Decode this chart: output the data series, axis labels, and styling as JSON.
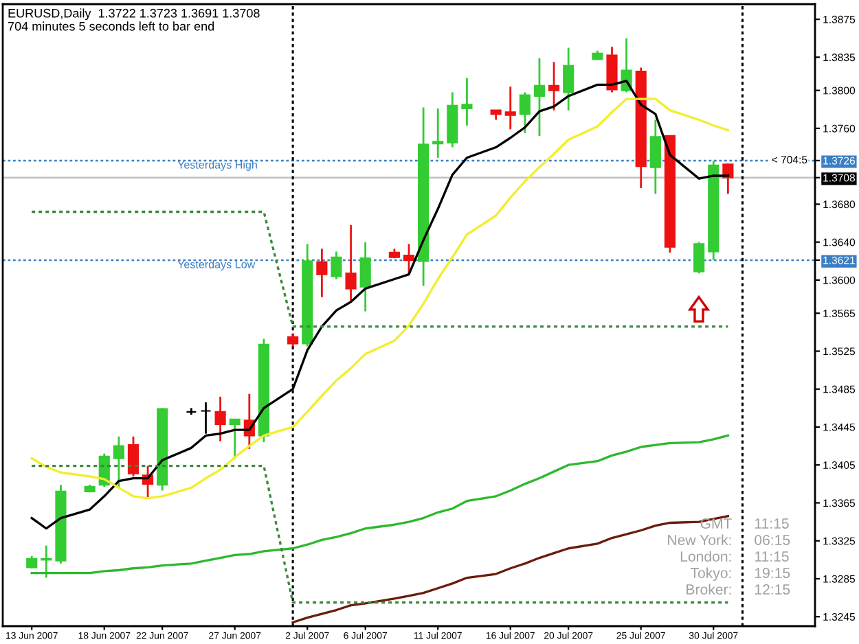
{
  "chart_data": {
    "type": "candlestick",
    "title": "EURUSD,Daily  1.3722 1.3723 1.3691 1.3708",
    "subtitle": "704 minutes 5 seconds left to bar end",
    "x": [
      "2007-06-13",
      "2007-06-14",
      "2007-06-15",
      "2007-06-17",
      "2007-06-18",
      "2007-06-19",
      "2007-06-20",
      "2007-06-21",
      "2007-06-22",
      "2007-06-24",
      "2007-06-25",
      "2007-06-26",
      "2007-06-27",
      "2007-06-28",
      "2007-06-29",
      "2007-07-01",
      "2007-07-02",
      "2007-07-03",
      "2007-07-04",
      "2007-07-05",
      "2007-07-06",
      "2007-07-08",
      "2007-07-09",
      "2007-07-10",
      "2007-07-11",
      "2007-07-12",
      "2007-07-13",
      "2007-07-15",
      "2007-07-16",
      "2007-07-17",
      "2007-07-18",
      "2007-07-19",
      "2007-07-20",
      "2007-07-22",
      "2007-07-23",
      "2007-07-24",
      "2007-07-25",
      "2007-07-26",
      "2007-07-27",
      "2007-07-29",
      "2007-07-30",
      "2007-07-31"
    ],
    "ohlc": [
      [
        1.3297,
        1.3309,
        1.3296,
        1.3306
      ],
      [
        1.3305,
        1.332,
        1.3286,
        1.3306
      ],
      [
        1.3304,
        1.3384,
        1.3301,
        1.3377
      ],
      [
        1.3377,
        1.3384,
        1.3376,
        1.3382
      ],
      [
        1.3384,
        1.3417,
        1.3382,
        1.3414
      ],
      [
        1.3412,
        1.3435,
        1.3381,
        1.3425
      ],
      [
        1.3426,
        1.3435,
        1.3393,
        1.3396
      ],
      [
        1.3394,
        1.3404,
        1.3369,
        1.3385
      ],
      [
        1.3384,
        1.3465,
        1.3378,
        1.3464
      ],
      [
        1.3461,
        1.3465,
        1.3458,
        1.3461
      ],
      [
        1.3462,
        1.3471,
        1.3438,
        1.3462
      ],
      [
        1.3461,
        1.3477,
        1.343,
        1.3448
      ],
      [
        1.3448,
        1.3453,
        1.3413,
        1.3453
      ],
      [
        1.3452,
        1.348,
        1.3422,
        1.3436
      ],
      [
        1.3436,
        1.3538,
        1.3429,
        1.3532
      ],
      [
        1.354,
        1.3543,
        1.353,
        1.3533
      ],
      [
        1.3533,
        1.3638,
        1.353,
        1.362
      ],
      [
        1.3619,
        1.3633,
        1.3582,
        1.3606
      ],
      [
        1.3604,
        1.363,
        1.3601,
        1.3624
      ],
      [
        1.3607,
        1.3658,
        1.3577,
        1.3591
      ],
      [
        1.3593,
        1.364,
        1.3567,
        1.3623
      ],
      [
        1.3629,
        1.3633,
        1.3623,
        1.3624
      ],
      [
        1.3626,
        1.3638,
        1.3606,
        1.3621
      ],
      [
        1.362,
        1.3782,
        1.3594,
        1.3743
      ],
      [
        1.3744,
        1.3781,
        1.3729,
        1.3746
      ],
      [
        1.3745,
        1.3798,
        1.374,
        1.3784
      ],
      [
        1.3781,
        1.3813,
        1.3763,
        1.3785
      ],
      [
        1.3779,
        1.3779,
        1.3769,
        1.3775
      ],
      [
        1.3777,
        1.3804,
        1.3759,
        1.3774
      ],
      [
        1.3775,
        1.3798,
        1.3755,
        1.3795
      ],
      [
        1.3794,
        1.3834,
        1.3752,
        1.3805
      ],
      [
        1.3805,
        1.383,
        1.3779,
        1.38
      ],
      [
        1.3798,
        1.3845,
        1.3779,
        1.3826
      ],
      [
        1.3833,
        1.3842,
        1.3832,
        1.3839
      ],
      [
        1.3837,
        1.3846,
        1.3798,
        1.3801
      ],
      [
        1.38,
        1.3855,
        1.3798,
        1.3821
      ],
      [
        1.382,
        1.3824,
        1.3697,
        1.372
      ],
      [
        1.3719,
        1.3769,
        1.3691,
        1.3751
      ],
      [
        1.3752,
        1.3752,
        1.3629,
        1.3635
      ],
      [
        1.3609,
        1.364,
        1.3607,
        1.3638
      ],
      [
        1.363,
        1.3726,
        1.3621,
        1.3721
      ],
      [
        1.3722,
        1.3723,
        1.3691,
        1.3708
      ]
    ],
    "colors": [
      "#33cc33",
      "#33cc33",
      "#33cc33",
      "#33cc33",
      "#33cc33",
      "#33cc33",
      "#ee1111",
      "#ee1111",
      "#33cc33",
      "#000000",
      "#000000",
      "#ee1111",
      "#33cc33",
      "#ee1111",
      "#33cc33",
      "#ee1111",
      "#33cc33",
      "#ee1111",
      "#33cc33",
      "#ee1111",
      "#33cc33",
      "#ee1111",
      "#ee1111",
      "#33cc33",
      "#33cc33",
      "#33cc33",
      "#33cc33",
      "#ee1111",
      "#ee1111",
      "#33cc33",
      "#33cc33",
      "#ee1111",
      "#33cc33",
      "#33cc33",
      "#ee1111",
      "#33cc33",
      "#ee1111",
      "#33cc33",
      "#ee1111",
      "#33cc33",
      "#33cc33",
      "#ee1111"
    ],
    "series": [
      {
        "type": "line",
        "color": "#000000",
        "values": [
          1.3349,
          1.3338,
          1.3349,
          1.3358,
          1.3372,
          1.3388,
          1.3391,
          1.3391,
          1.341,
          1.3423,
          1.3436,
          1.3438,
          1.3442,
          1.3442,
          1.3465,
          1.3485,
          1.3526,
          1.3551,
          1.3568,
          1.3577,
          1.3591,
          1.3601,
          1.3606,
          1.3642,
          1.3675,
          1.3711,
          1.3729,
          1.374,
          1.375,
          1.3761,
          1.3778,
          1.3783,
          1.3794,
          1.3806,
          1.3806,
          1.381,
          1.3785,
          1.3775,
          1.3732,
          1.3707,
          1.371,
          1.371
        ]
      },
      {
        "type": "line",
        "color": "#f2ee2e",
        "values": [
          1.3412,
          1.3403,
          1.3397,
          1.3393,
          1.339,
          1.3381,
          1.3372,
          1.337,
          1.3372,
          1.3381,
          1.3391,
          1.34,
          1.3413,
          1.3425,
          1.3436,
          1.3445,
          1.3461,
          1.3478,
          1.3494,
          1.3507,
          1.3522,
          1.3536,
          1.3552,
          1.3575,
          1.3601,
          1.3624,
          1.3648,
          1.3668,
          1.3687,
          1.3704,
          1.3719,
          1.3733,
          1.3748,
          1.3762,
          1.3777,
          1.3791,
          1.3791,
          1.3791,
          1.3779,
          1.3769,
          1.3763,
          1.3758
        ]
      },
      {
        "type": "line",
        "color": "#2fb82f",
        "values": [
          1.3291,
          1.3291,
          1.3291,
          1.3291,
          1.3293,
          1.3294,
          1.3296,
          1.3297,
          1.3299,
          1.3301,
          1.3304,
          1.3307,
          1.331,
          1.3311,
          1.3314,
          1.3317,
          1.3321,
          1.3326,
          1.3329,
          1.3333,
          1.3338,
          1.3342,
          1.3345,
          1.3349,
          1.3355,
          1.3359,
          1.3367,
          1.3372,
          1.3378,
          1.3385,
          1.3391,
          1.3398,
          1.3405,
          1.3409,
          1.3415,
          1.3419,
          1.3424,
          1.3426,
          1.3428,
          1.3429,
          1.3432,
          1.3436
        ]
      },
      {
        "type": "line",
        "color": "#6b1c0c",
        "values": [
          null,
          null,
          null,
          null,
          null,
          null,
          null,
          null,
          null,
          null,
          null,
          null,
          null,
          null,
          null,
          1.3239,
          1.3244,
          1.3248,
          1.3252,
          1.3257,
          1.3259,
          1.3264,
          1.3267,
          1.327,
          1.3275,
          1.328,
          1.3286,
          1.329,
          1.3296,
          1.3301,
          1.3307,
          1.3312,
          1.3317,
          1.3322,
          1.3328,
          1.3332,
          1.3336,
          1.3341,
          1.3344,
          1.3345,
          1.3348,
          1.3351
        ]
      },
      {
        "type": "line",
        "color": "#3a8a3a",
        "line_style": "dotted",
        "values": [
          1.3672,
          1.3672,
          1.3672,
          1.3672,
          1.3672,
          1.3672,
          1.3672,
          1.3672,
          1.3672,
          1.3672,
          1.3672,
          1.3672,
          1.3672,
          1.3672,
          1.3672,
          1.3551,
          1.3551,
          1.3551,
          1.3551,
          1.3551,
          1.3551,
          1.3551,
          1.3551,
          1.3551,
          1.3551,
          1.3551,
          1.3551,
          1.3551,
          1.3551,
          1.3551,
          1.3551,
          1.3551,
          1.3551,
          1.3551,
          1.3551,
          1.3551,
          1.3551,
          1.3551,
          1.3551,
          1.3551,
          1.3551,
          1.3551
        ]
      },
      {
        "type": "line",
        "color": "#3a8a3a",
        "line_style": "dotted",
        "values": [
          1.3404,
          1.3404,
          1.3404,
          1.3404,
          1.3404,
          1.3404,
          1.3404,
          1.3404,
          1.3404,
          1.3404,
          1.3404,
          1.3404,
          1.3404,
          1.3404,
          1.3404,
          1.326,
          1.326,
          1.326,
          1.326,
          1.326,
          1.326,
          1.326,
          1.326,
          1.326,
          1.326,
          1.326,
          1.326,
          1.326,
          1.326,
          1.326,
          1.326,
          1.326,
          1.326,
          1.326,
          1.326,
          1.326,
          1.326,
          1.326,
          1.326,
          1.326,
          1.326,
          1.326
        ]
      }
    ],
    "ref_lines": [
      {
        "axis": "y",
        "value": 1.3726,
        "label": "Yesterdays High",
        "color": "#3a7fc4",
        "line_style": "dotted"
      },
      {
        "axis": "y",
        "value": 1.3621,
        "label": "Yesterdays Low",
        "color": "#3a7fc4",
        "line_style": "dotted"
      },
      {
        "axis": "y",
        "value": 1.3708,
        "color": "#c0c0c0",
        "line_style": "solid"
      },
      {
        "axis": "x",
        "value": "2007-07-01",
        "color": "#000000",
        "line_style": "dotted"
      },
      {
        "axis": "x",
        "value": "2007-08-01",
        "color": "#000000",
        "line_style": "dotted"
      }
    ],
    "annotations": [
      {
        "text": "< 704:5",
        "x": "2007-08-03",
        "y": 1.3726
      },
      "GMT",
      "11:15",
      "New York:",
      "06:15",
      "London:",
      "11:15",
      "Tokyo:",
      "19:15",
      "Broker:",
      "12:15"
    ],
    "xlim": [
      "2007-06-11",
      "2007-08-06"
    ],
    "xticks": [
      {
        "value": "2007-06-13",
        "label": "13 Jun 2007"
      },
      {
        "value": "2007-06-18",
        "label": "18 Jun 2007"
      },
      {
        "value": "2007-06-22",
        "label": "22 Jun 2007"
      },
      {
        "value": "2007-06-27",
        "label": "27 Jun 2007"
      },
      {
        "value": "2007-07-02",
        "label": "2 Jul 2007"
      },
      {
        "value": "2007-07-06",
        "label": "6 Jul 2007"
      },
      {
        "value": "2007-07-11",
        "label": "11 Jul 2007"
      },
      {
        "value": "2007-07-16",
        "label": "16 Jul 2007"
      },
      {
        "value": "2007-07-20",
        "label": "20 Jul 2007"
      },
      {
        "value": "2007-07-25",
        "label": "25 Jul 2007"
      },
      {
        "value": "2007-07-30",
        "label": "30 Jul 2007"
      }
    ],
    "ylim": [
      1.3235,
      1.3891
    ],
    "yticks": [
      1.3875,
      1.3835,
      {
        "value": 1.38,
        "label": "1.3800"
      },
      {
        "value": 1.376,
        "label": "1.3760"
      },
      1.3726,
      1.3708,
      {
        "value": 1.368,
        "label": "1.3680"
      },
      {
        "value": 1.364,
        "label": "1.3640"
      },
      1.3621,
      {
        "value": 1.36,
        "label": "1.3600"
      },
      1.3565,
      1.3525,
      1.3485,
      1.3445,
      1.3405,
      1.3365,
      1.3325,
      1.3285,
      1.3245
    ]
  }
}
